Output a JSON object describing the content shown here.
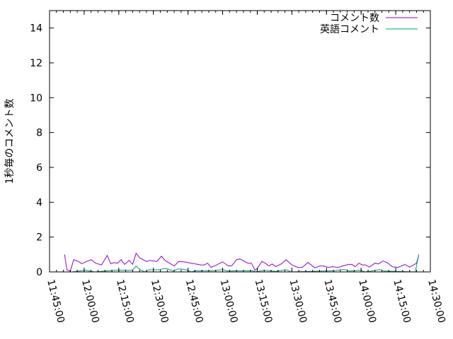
{
  "chart_data": {
    "type": "line",
    "title": "",
    "xlabel": "",
    "ylabel": "1秒毎のコメント数",
    "xlim": [
      "11:45:00",
      "14:30:00"
    ],
    "ylim": [
      0,
      15
    ],
    "x_tick_labels": [
      "11:45:00",
      "12:00:00",
      "12:15:00",
      "12:30:00",
      "12:45:00",
      "13:00:00",
      "13:15:00",
      "13:30:00",
      "13:45:00",
      "14:00:00",
      "14:15:00",
      "14:30:00"
    ],
    "y_tick_labels": [
      "0",
      "2",
      "4",
      "6",
      "8",
      "10",
      "12",
      "14"
    ],
    "legend_position": "top-right",
    "grid": false,
    "series": [
      {
        "name": "コメント数",
        "color": "#9400d3",
        "points": [
          [
            "11:51:30",
            1.0
          ],
          [
            "11:52:30",
            0.12
          ],
          [
            "11:54:00",
            0.05
          ],
          [
            "11:55:30",
            0.7
          ],
          [
            "11:57:30",
            0.6
          ],
          [
            "11:59:00",
            0.47
          ],
          [
            "12:01:00",
            0.6
          ],
          [
            "12:03:00",
            0.7
          ],
          [
            "12:05:00",
            0.5
          ],
          [
            "12:07:30",
            0.4
          ],
          [
            "12:10:00",
            0.95
          ],
          [
            "12:11:30",
            0.47
          ],
          [
            "12:13:00",
            0.53
          ],
          [
            "12:14:30",
            0.5
          ],
          [
            "12:16:00",
            0.7
          ],
          [
            "12:17:30",
            0.43
          ],
          [
            "12:19:30",
            0.66
          ],
          [
            "12:21:00",
            0.43
          ],
          [
            "12:22:30",
            1.07
          ],
          [
            "12:24:00",
            0.81
          ],
          [
            "12:27:00",
            0.6
          ],
          [
            "12:28:30",
            0.66
          ],
          [
            "12:31:30",
            0.6
          ],
          [
            "12:33:30",
            0.9
          ],
          [
            "12:35:00",
            0.66
          ],
          [
            "12:37:00",
            0.5
          ],
          [
            "12:39:00",
            0.34
          ],
          [
            "12:41:00",
            0.6
          ],
          [
            "12:43:30",
            0.57
          ],
          [
            "12:46:30",
            0.5
          ],
          [
            "12:48:30",
            0.45
          ],
          [
            "12:50:30",
            0.4
          ],
          [
            "12:52:00",
            0.4
          ],
          [
            "12:53:30",
            0.5
          ],
          [
            "12:55:00",
            0.26
          ],
          [
            "12:56:30",
            0.34
          ],
          [
            "13:00:00",
            0.57
          ],
          [
            "13:02:30",
            0.34
          ],
          [
            "13:04:00",
            0.36
          ],
          [
            "13:06:00",
            0.7
          ],
          [
            "13:07:30",
            0.74
          ],
          [
            "13:11:00",
            0.5
          ],
          [
            "13:12:30",
            0.5
          ],
          [
            "13:14:00",
            0.1
          ],
          [
            "13:15:00",
            0.2
          ],
          [
            "13:17:00",
            0.6
          ],
          [
            "13:18:30",
            0.5
          ],
          [
            "13:20:00",
            0.34
          ],
          [
            "13:21:30",
            0.46
          ],
          [
            "13:23:00",
            0.3
          ],
          [
            "13:25:30",
            0.47
          ],
          [
            "13:27:30",
            0.7
          ],
          [
            "13:30:00",
            0.4
          ],
          [
            "13:32:30",
            0.26
          ],
          [
            "13:34:30",
            0.26
          ],
          [
            "13:37:00",
            0.54
          ],
          [
            "13:40:00",
            0.23
          ],
          [
            "13:42:00",
            0.34
          ],
          [
            "13:43:30",
            0.34
          ],
          [
            "13:46:00",
            0.26
          ],
          [
            "13:47:30",
            0.3
          ],
          [
            "13:50:00",
            0.26
          ],
          [
            "13:52:00",
            0.34
          ],
          [
            "13:54:30",
            0.43
          ],
          [
            "13:56:00",
            0.43
          ],
          [
            "13:57:30",
            0.3
          ],
          [
            "13:59:00",
            0.5
          ],
          [
            "14:00:30",
            0.4
          ],
          [
            "14:02:00",
            0.4
          ],
          [
            "14:03:30",
            0.27
          ],
          [
            "14:06:00",
            0.5
          ],
          [
            "14:07:30",
            0.46
          ],
          [
            "14:09:30",
            0.63
          ],
          [
            "14:11:30",
            0.52
          ],
          [
            "14:13:30",
            0.3
          ],
          [
            "14:16:00",
            0.26
          ],
          [
            "14:19:00",
            0.43
          ],
          [
            "14:21:00",
            0.27
          ],
          [
            "14:24:00",
            0.5
          ],
          [
            "14:25:00",
            0.97
          ]
        ]
      },
      {
        "name": "英語コメント",
        "color": "#009e73",
        "points": [
          [
            "11:51:30",
            0
          ],
          [
            "11:55:00",
            0
          ],
          [
            "12:00:30",
            0.1
          ],
          [
            "12:04:30",
            0
          ],
          [
            "12:13:30",
            0.1
          ],
          [
            "12:21:00",
            0.1
          ],
          [
            "12:22:30",
            0.34
          ],
          [
            "12:24:30",
            0.1
          ],
          [
            "12:26:30",
            0
          ],
          [
            "12:28:00",
            0.12
          ],
          [
            "12:32:30",
            0.12
          ],
          [
            "12:34:30",
            0.19
          ],
          [
            "12:36:00",
            0.18
          ],
          [
            "12:38:30",
            0.07
          ],
          [
            "12:41:00",
            0.18
          ],
          [
            "12:44:00",
            0.12
          ],
          [
            "12:46:30",
            0
          ],
          [
            "12:48:30",
            0.07
          ],
          [
            "12:56:30",
            0.07
          ],
          [
            "13:00:00",
            0.13
          ],
          [
            "13:02:30",
            0.05
          ],
          [
            "13:07:30",
            0.07
          ],
          [
            "13:13:00",
            0.07
          ],
          [
            "13:14:30",
            0
          ],
          [
            "13:18:00",
            0.1
          ],
          [
            "13:23:00",
            0.03
          ],
          [
            "13:27:30",
            0.13
          ],
          [
            "13:29:30",
            0
          ],
          [
            "13:48:30",
            0.07
          ],
          [
            "13:51:30",
            0.13
          ],
          [
            "13:53:30",
            0.12
          ],
          [
            "13:55:00",
            0.05
          ],
          [
            "14:00:00",
            0.1
          ],
          [
            "14:01:30",
            0
          ],
          [
            "14:04:30",
            0.05
          ],
          [
            "14:08:00",
            0.13
          ],
          [
            "14:10:00",
            0.05
          ],
          [
            "14:23:30",
            0
          ],
          [
            "14:25:00",
            1.0
          ]
        ]
      }
    ]
  }
}
